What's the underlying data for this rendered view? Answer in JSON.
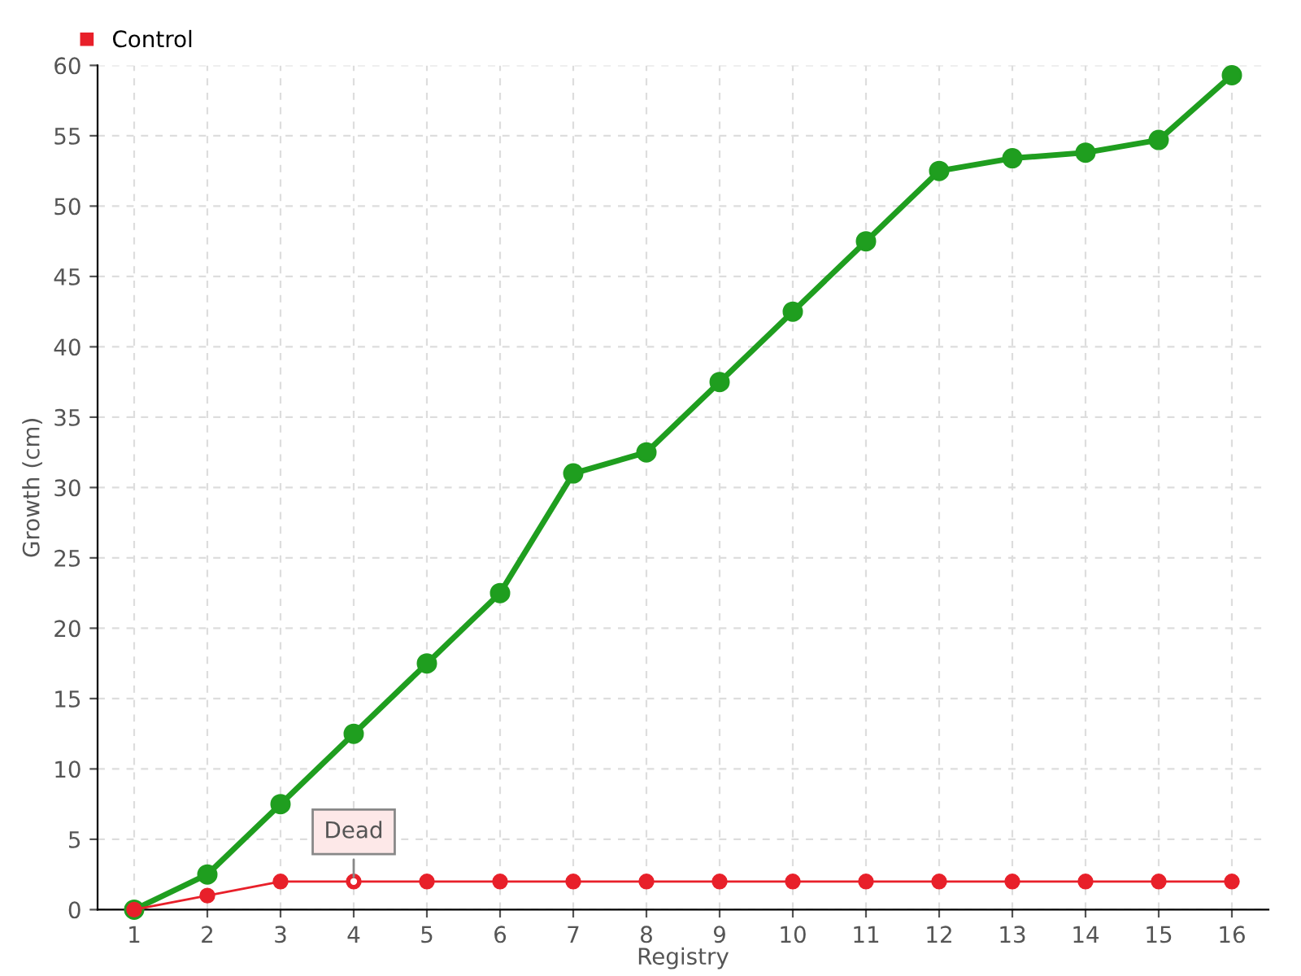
{
  "chart_data": {
    "type": "line",
    "xlabel": "Registry",
    "ylabel": "Growth (cm)",
    "categories": [
      "1",
      "2",
      "3",
      "4",
      "5",
      "6",
      "7",
      "8",
      "9",
      "10",
      "11",
      "12",
      "13",
      "14",
      "15",
      "16"
    ],
    "series": [
      {
        "color": "#1f9e1f",
        "values": [
          0,
          2.5,
          7.5,
          12.5,
          17.5,
          22.5,
          31,
          32.5,
          37.5,
          42.5,
          47.5,
          52.5,
          53.4,
          53.8,
          54.7,
          59.3
        ]
      },
      {
        "name": "Control",
        "color": "#e8202a",
        "values": [
          0,
          1,
          2,
          2,
          2,
          2,
          2,
          2,
          2,
          2,
          2,
          2,
          2,
          2,
          2,
          2
        ]
      }
    ],
    "annotations": [
      {
        "text": "Dead",
        "x": "4",
        "y": 2
      }
    ],
    "ylim": [
      0,
      60
    ],
    "yticks": [
      0,
      5,
      10,
      15,
      20,
      25,
      30,
      35,
      40,
      45,
      50,
      55,
      60
    ],
    "grid": true,
    "legend": "top left",
    "marker": "circle",
    "line_style": "solid"
  }
}
